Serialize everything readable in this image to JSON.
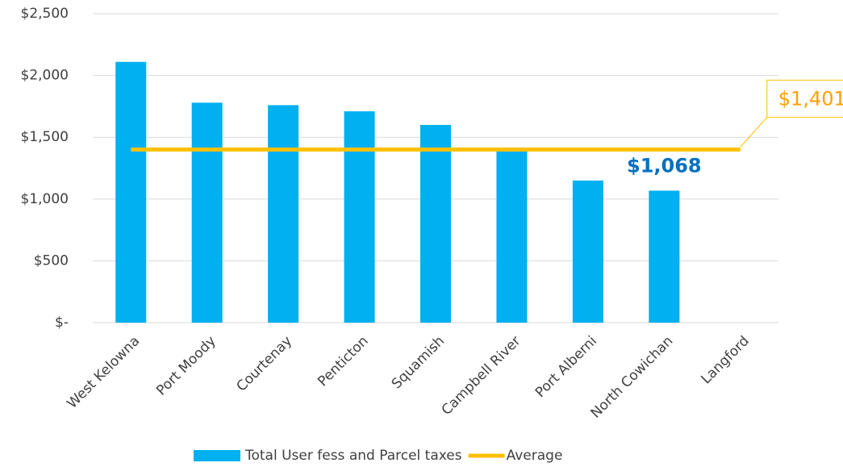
{
  "chart_data": {
    "type": "bar",
    "categories": [
      "West Kelowna",
      "Port Moody",
      "Courtenay",
      "Penticton",
      "Squamish",
      "Campbell River",
      "Port Alberni",
      "North Cowichan",
      "Langford"
    ],
    "series": [
      {
        "name": "Total User fess and Parcel taxes",
        "type": "bar",
        "color": "#00b0f0",
        "values": [
          2110,
          1780,
          1760,
          1710,
          1600,
          1400,
          1150,
          1068,
          null
        ],
        "value_labels": [
          null,
          null,
          null,
          null,
          null,
          null,
          null,
          "$1,068",
          null
        ]
      },
      {
        "name": "Average",
        "type": "line",
        "color": "#ffc000",
        "values": [
          1401,
          1401,
          1401,
          1401,
          1401,
          1401,
          1401,
          1401,
          1401
        ],
        "value_labels": [
          null,
          null,
          null,
          null,
          null,
          null,
          null,
          null,
          "$1,401"
        ]
      }
    ],
    "ylim": [
      0,
      2500
    ],
    "yticks": [
      {
        "value": 0,
        "label": "$-"
      },
      {
        "value": 500,
        "label": "$500"
      },
      {
        "value": 1000,
        "label": "$1,000"
      },
      {
        "value": 1500,
        "label": "$1,500"
      },
      {
        "value": 2000,
        "label": "$2,000"
      },
      {
        "value": 2500,
        "label": "$2,500"
      }
    ],
    "grid": true,
    "legend": "bottom"
  }
}
